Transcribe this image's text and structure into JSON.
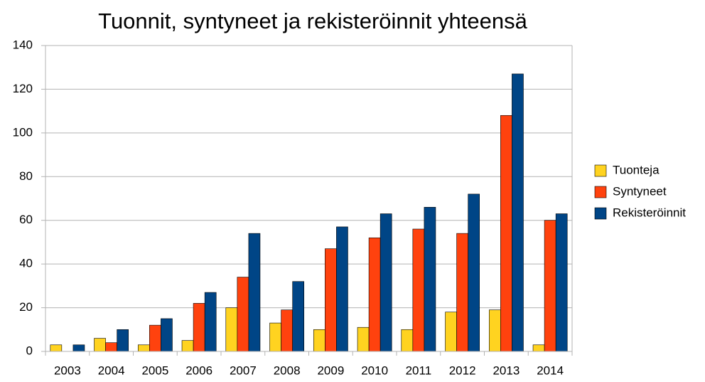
{
  "chart_data": {
    "type": "bar",
    "title": "Tuonnit, syntyneet ja rekisteröinnit yhteensä",
    "categories": [
      "2003",
      "2004",
      "2005",
      "2006",
      "2007",
      "2008",
      "2009",
      "2010",
      "2011",
      "2012",
      "2013",
      "2014"
    ],
    "series": [
      {
        "name": "Tuonteja",
        "color": "#ffd320",
        "values": [
          3,
          6,
          3,
          5,
          20,
          13,
          10,
          11,
          10,
          18,
          19,
          3
        ]
      },
      {
        "name": "Syntyneet",
        "color": "#ff420e",
        "values": [
          0,
          4,
          12,
          22,
          34,
          19,
          47,
          52,
          56,
          54,
          108,
          60
        ]
      },
      {
        "name": "Rekisteröinnit",
        "color": "#004586",
        "values": [
          3,
          10,
          15,
          27,
          54,
          32,
          57,
          63,
          66,
          72,
          127,
          63
        ]
      }
    ],
    "ylim": [
      0,
      140
    ],
    "yticks": [
      0,
      20,
      40,
      60,
      80,
      100,
      120,
      140
    ],
    "grid": true,
    "legend": "right"
  }
}
